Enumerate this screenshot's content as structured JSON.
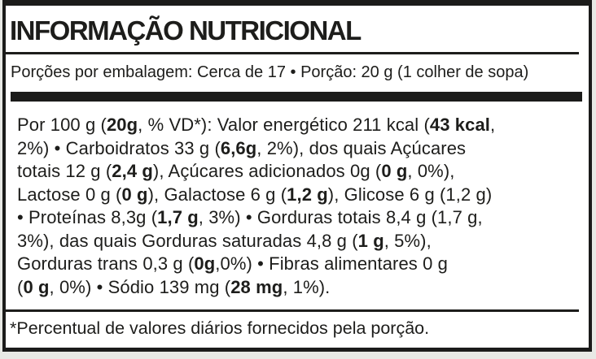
{
  "label": {
    "title": "INFORMAÇÃO NUTRICIONAL",
    "servings_line": "Porções por embalagem: Cerca de 17 • Porção: 20 g (1 colher de sopa)",
    "footnote": "*Percentual de valores diários fornecidos pela porção.",
    "body_lines": [
      [
        {
          "t": "Por 100 g (",
          "b": false
        },
        {
          "t": "20g",
          "b": true
        },
        {
          "t": ", % VD*): Valor energético 211 kcal (",
          "b": false
        },
        {
          "t": "43 kcal",
          "b": true
        },
        {
          "t": ",",
          "b": false
        }
      ],
      [
        {
          "t": "2%) • Carboidratos 33 g (",
          "b": false
        },
        {
          "t": "6,6g",
          "b": true
        },
        {
          "t": ", 2%), dos quais Açúcares",
          "b": false
        }
      ],
      [
        {
          "t": "totais 12 g (",
          "b": false
        },
        {
          "t": "2,4 g",
          "b": true
        },
        {
          "t": "), Açúcares adicionados 0g (",
          "b": false
        },
        {
          "t": "0 g",
          "b": true
        },
        {
          "t": ", 0%),",
          "b": false
        }
      ],
      [
        {
          "t": "Lactose 0 g (",
          "b": false
        },
        {
          "t": "0 g",
          "b": true
        },
        {
          "t": "), Galactose 6 g (",
          "b": false
        },
        {
          "t": "1,2 g",
          "b": true
        },
        {
          "t": "), Glicose 6 g (1,2 g)",
          "b": false
        }
      ],
      [
        {
          "t": "• Proteínas 8,3g (",
          "b": false
        },
        {
          "t": "1,7 g",
          "b": true
        },
        {
          "t": ", 3%) • Gorduras totais 8,4 g (1,7 g,",
          "b": false
        }
      ],
      [
        {
          "t": "3%), das quais Gorduras saturadas 4,8 g (",
          "b": false
        },
        {
          "t": "1 g",
          "b": true
        },
        {
          "t": ", 5%),",
          "b": false
        }
      ],
      [
        {
          "t": "Gorduras trans 0,3 g (",
          "b": false
        },
        {
          "t": "0g",
          "b": true
        },
        {
          "t": ",0%) • Fibras alimentares 0 g",
          "b": false
        }
      ],
      [
        {
          "t": "(",
          "b": false
        },
        {
          "t": "0 g",
          "b": true
        },
        {
          "t": ", 0%) • Sódio 139 mg (",
          "b": false
        },
        {
          "t": "28 mg",
          "b": true
        },
        {
          "t": ", 1%).",
          "b": false
        }
      ]
    ],
    "colors": {
      "border": "#1b1b1a",
      "text": "#1d1d1b",
      "label_background": "#ffffff",
      "page_background": "#e8e9e5"
    }
  }
}
